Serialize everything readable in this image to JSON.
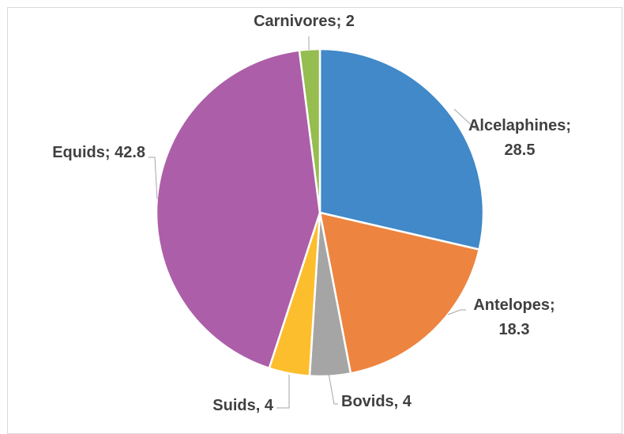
{
  "chart_data": {
    "type": "pie",
    "title": "",
    "legend": "none",
    "slices": [
      {
        "label": "Alcelaphines",
        "value": 28.5,
        "text_lines": [
          "Alcelaphines;",
          "28.5"
        ],
        "color": "#4189c8"
      },
      {
        "label": "Antelopes",
        "value": 18.3,
        "text_lines": [
          "Antelopes;",
          "18.3"
        ],
        "color": "#ed843f"
      },
      {
        "label": "Bovids",
        "value": 4,
        "text_lines": [
          "Bovids, 4"
        ],
        "color": "#a5a5a5"
      },
      {
        "label": "Suids",
        "value": 4,
        "text_lines": [
          "Suids, 4"
        ],
        "color": "#fdbe2d"
      },
      {
        "label": "Equids",
        "value": 42.8,
        "text_lines": [
          "Equids; 42.8"
        ],
        "color": "#ac5fa8"
      },
      {
        "label": "Carnivores",
        "value": 2,
        "text_lines": [
          "Carnivores; 2"
        ],
        "color": "#95bd4f"
      }
    ]
  }
}
